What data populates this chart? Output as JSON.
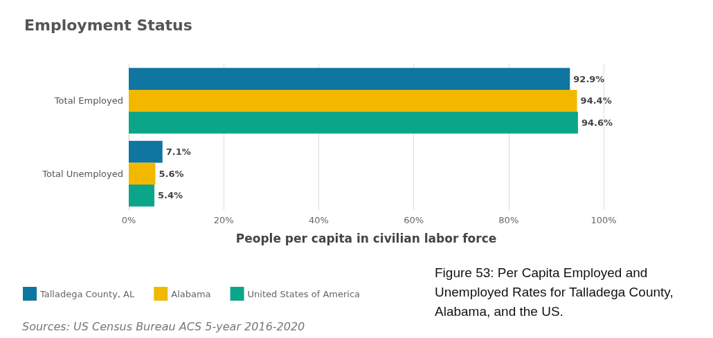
{
  "chart_data": {
    "type": "bar",
    "orientation": "horizontal",
    "title": "Employment Status",
    "xlabel": "People per capita in civilian labor force",
    "categories": [
      "Total Employed",
      "Total Unemployed"
    ],
    "series": [
      {
        "name": "Talladega County, AL",
        "color": "#0f75a1",
        "values": [
          92.9,
          7.1
        ],
        "value_labels": [
          "92.9%",
          "7.1%"
        ]
      },
      {
        "name": "Alabama",
        "color": "#f2b800",
        "values": [
          94.4,
          5.6
        ],
        "value_labels": [
          "94.4%",
          "5.6%"
        ]
      },
      {
        "name": "United States of America",
        "color": "#0ba68a",
        "values": [
          94.6,
          5.4
        ],
        "value_labels": [
          "94.6%",
          "5.4%"
        ]
      }
    ],
    "xlim": [
      0,
      100
    ],
    "xticks": [
      {
        "value": 0,
        "label": "0%"
      },
      {
        "value": 20,
        "label": "20%"
      },
      {
        "value": 40,
        "label": "40%"
      },
      {
        "value": 60,
        "label": "60%"
      },
      {
        "value": 80,
        "label": "80%"
      },
      {
        "value": 100,
        "label": "100%"
      }
    ],
    "grid": "x",
    "legend": "bottom left",
    "annotations": [
      "Sources: US Census Bureau ACS 5-year 2016-2020",
      "Figure 53: Per Capita Employed and Unemployed Rates for Talladega County, Alabama, and the US."
    ]
  }
}
